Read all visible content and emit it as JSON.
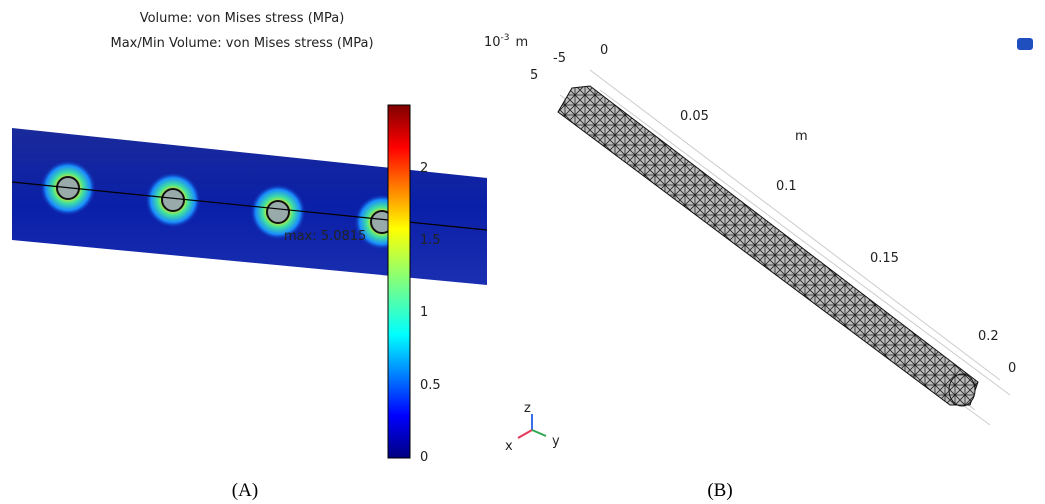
{
  "panel_a": {
    "title_lines": [
      "Volume: von Mises stress (MPa)",
      "Max/Min Volume: von Mises stress (MPa)"
    ],
    "colorbar_ticks": [
      "2",
      "1.5",
      "1",
      "0.5",
      "0"
    ],
    "max_annotation": "max: 5.0815",
    "triad": {
      "z": "z",
      "x": "x",
      "y": "y"
    },
    "caption": "(A)"
  },
  "panel_b": {
    "scale_base": "10",
    "scale_exp": "-3",
    "scale_unit": "m",
    "labels": [
      "-5",
      "0",
      "5",
      "0.05",
      "m",
      "0.1",
      "0.15",
      "0.2",
      "0"
    ],
    "caption": "(B)"
  }
}
